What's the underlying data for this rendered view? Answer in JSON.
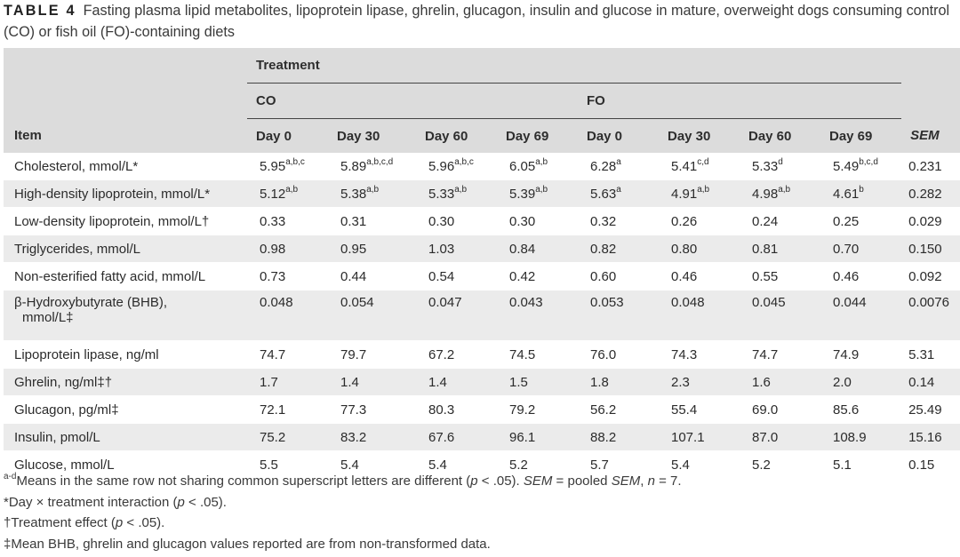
{
  "caption": {
    "label": "TABLE 4",
    "text": "Fasting plasma lipid metabolites, lipoprotein lipase, ghrelin, glucagon, insulin and glucose in mature, overweight dogs consuming control (CO) or fish oil (FO)-containing diets"
  },
  "header": {
    "treatment": "Treatment",
    "group_co": "CO",
    "group_fo": "FO",
    "item": "Item",
    "days": [
      "Day 0",
      "Day 30",
      "Day 60",
      "Day 69",
      "Day 0",
      "Day 30",
      "Day 60",
      "Day 69"
    ],
    "sem": "SEM"
  },
  "rows": [
    {
      "item": "Cholesterol, mmol/L*",
      "values": [
        [
          "5.95",
          "a,b,c"
        ],
        [
          "5.89",
          "a,b,c,d"
        ],
        [
          "5.96",
          "a,b,c"
        ],
        [
          "6.05",
          "a,b"
        ],
        [
          "6.28",
          "a"
        ],
        [
          "5.41",
          "c,d"
        ],
        [
          "5.33",
          "d"
        ],
        [
          "5.49",
          "b,c,d"
        ]
      ],
      "sem": "0.231"
    },
    {
      "item": "High-density lipoprotein, mmol/L*",
      "values": [
        [
          "5.12",
          "a,b"
        ],
        [
          "5.38",
          "a,b"
        ],
        [
          "5.33",
          "a,b"
        ],
        [
          "5.39",
          "a,b"
        ],
        [
          "5.63",
          "a"
        ],
        [
          "4.91",
          "a,b"
        ],
        [
          "4.98",
          "a,b"
        ],
        [
          "4.61",
          "b"
        ]
      ],
      "sem": "0.282"
    },
    {
      "item": "Low-density lipoprotein, mmol/L†",
      "values": [
        [
          "0.33",
          ""
        ],
        [
          "0.31",
          ""
        ],
        [
          "0.30",
          ""
        ],
        [
          "0.30",
          ""
        ],
        [
          "0.32",
          ""
        ],
        [
          "0.26",
          ""
        ],
        [
          "0.24",
          ""
        ],
        [
          "0.25",
          ""
        ]
      ],
      "sem": "0.029"
    },
    {
      "item": "Triglycerides, mmol/L",
      "values": [
        [
          "0.98",
          ""
        ],
        [
          "0.95",
          ""
        ],
        [
          "1.03",
          ""
        ],
        [
          "0.84",
          ""
        ],
        [
          "0.82",
          ""
        ],
        [
          "0.80",
          ""
        ],
        [
          "0.81",
          ""
        ],
        [
          "0.70",
          ""
        ]
      ],
      "sem": "0.150"
    },
    {
      "item": "Non-esterified fatty acid, mmol/L",
      "values": [
        [
          "0.73",
          ""
        ],
        [
          "0.44",
          ""
        ],
        [
          "0.54",
          ""
        ],
        [
          "0.42",
          ""
        ],
        [
          "0.60",
          ""
        ],
        [
          "0.46",
          ""
        ],
        [
          "0.55",
          ""
        ],
        [
          "0.46",
          ""
        ]
      ],
      "sem": "0.092"
    },
    {
      "item_line1": "β-Hydroxybutyrate (BHB),",
      "item_line2": "mmol/L‡",
      "values": [
        [
          "0.048",
          ""
        ],
        [
          "0.054",
          ""
        ],
        [
          "0.047",
          ""
        ],
        [
          "0.043",
          ""
        ],
        [
          "0.053",
          ""
        ],
        [
          "0.048",
          ""
        ],
        [
          "0.045",
          ""
        ],
        [
          "0.044",
          ""
        ]
      ],
      "sem": "0.0076"
    },
    {
      "item": "Lipoprotein lipase, ng/ml",
      "values": [
        [
          "74.7",
          ""
        ],
        [
          "79.7",
          ""
        ],
        [
          "67.2",
          ""
        ],
        [
          "74.5",
          ""
        ],
        [
          "76.0",
          ""
        ],
        [
          "74.3",
          ""
        ],
        [
          "74.7",
          ""
        ],
        [
          "74.9",
          ""
        ]
      ],
      "sem": "5.31"
    },
    {
      "item": "Ghrelin, ng/ml‡†",
      "values": [
        [
          "1.7",
          ""
        ],
        [
          "1.4",
          ""
        ],
        [
          "1.4",
          ""
        ],
        [
          "1.5",
          ""
        ],
        [
          "1.8",
          ""
        ],
        [
          "2.3",
          ""
        ],
        [
          "1.6",
          ""
        ],
        [
          "2.0",
          ""
        ]
      ],
      "sem": "0.14"
    },
    {
      "item": "Glucagon, pg/ml‡",
      "values": [
        [
          "72.1",
          ""
        ],
        [
          "77.3",
          ""
        ],
        [
          "80.3",
          ""
        ],
        [
          "79.2",
          ""
        ],
        [
          "56.2",
          ""
        ],
        [
          "55.4",
          ""
        ],
        [
          "69.0",
          ""
        ],
        [
          "85.6",
          ""
        ]
      ],
      "sem": "25.49"
    },
    {
      "item": "Insulin, pmol/L",
      "values": [
        [
          "75.2",
          ""
        ],
        [
          "83.2",
          ""
        ],
        [
          "67.6",
          ""
        ],
        [
          "96.1",
          ""
        ],
        [
          "88.2",
          ""
        ],
        [
          "107.1",
          ""
        ],
        [
          "87.0",
          ""
        ],
        [
          "108.9",
          ""
        ]
      ],
      "sem": "15.16"
    },
    {
      "item": "Glucose, mmol/L",
      "values": [
        [
          "5.5",
          ""
        ],
        [
          "5.4",
          ""
        ],
        [
          "5.4",
          ""
        ],
        [
          "5.2",
          ""
        ],
        [
          "5.7",
          ""
        ],
        [
          "5.4",
          ""
        ],
        [
          "5.2",
          ""
        ],
        [
          "5.1",
          ""
        ]
      ],
      "sem": "0.15"
    }
  ],
  "notes": {
    "n1_sup": "a-d",
    "n1_a": "Means in the same row not sharing common superscript letters are different (",
    "n1_p": "p",
    "n1_b": " < .05). ",
    "n1_sem1": "SEM",
    "n1_c": " = pooled ",
    "n1_sem2": "SEM",
    "n1_d": ", ",
    "n1_n": "n",
    "n1_e": " = 7.",
    "n2_a": "*Day × treatment interaction (",
    "n2_p": "p",
    "n2_b": " < .05).",
    "n3_a": "†Treatment effect (",
    "n3_p": "p",
    "n3_b": " < .05).",
    "n4": "‡Mean BHB, ghrelin and glucagon values reported are from non-transformed data."
  }
}
